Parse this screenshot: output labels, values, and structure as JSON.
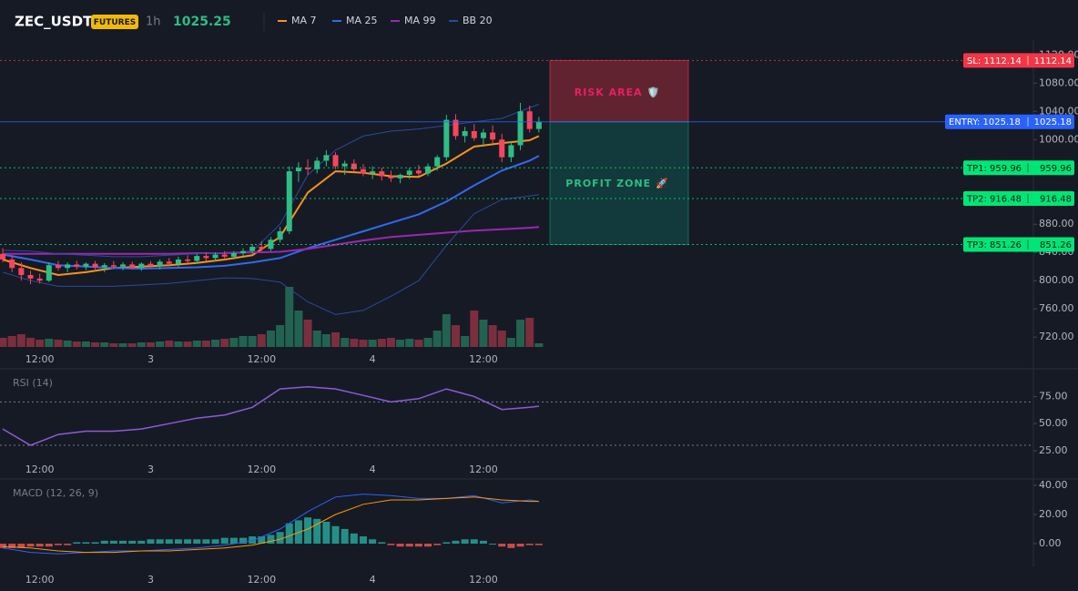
{
  "header": {
    "symbol": "ZEC_USDT",
    "badge": "FUTURES",
    "interval": "1h",
    "price": 1025.25
  },
  "chart_data": [
    {
      "type": "candlestick",
      "categories": [
        null,
        null,
        null,
        null,
        "12:00",
        null,
        null,
        null,
        null,
        null,
        null,
        null,
        null,
        null,
        null,
        null,
        "3",
        null,
        null,
        null,
        null,
        null,
        null,
        null,
        null,
        null,
        null,
        null,
        "12:00",
        null,
        null,
        null,
        null,
        null,
        null,
        null,
        null,
        null,
        null,
        null,
        "4",
        null,
        null,
        null,
        null,
        null,
        null,
        null,
        null,
        null,
        null,
        null,
        "12:00",
        null,
        null,
        null,
        null,
        null,
        null
      ],
      "open": [
        838,
        830,
        818,
        808,
        803,
        800,
        822,
        818,
        823,
        820,
        824,
        819,
        822,
        820,
        823,
        818,
        824,
        821,
        827,
        824,
        830,
        828,
        835,
        832,
        837,
        834,
        839,
        842,
        848,
        845,
        858,
        870,
        955,
        960,
        958,
        970,
        978,
        962,
        966,
        958,
        952,
        955,
        948,
        945,
        950,
        956,
        952,
        962,
        975,
        1028,
        1005,
        1012,
        1002,
        1010,
        1000,
        975,
        992,
        1040,
        1015
      ],
      "high": [
        846,
        836,
        826,
        814,
        810,
        826,
        828,
        826,
        828,
        826,
        828,
        825,
        828,
        826,
        827,
        826,
        828,
        830,
        832,
        834,
        836,
        838,
        840,
        840,
        842,
        842,
        846,
        852,
        856,
        862,
        876,
        962,
        968,
        972,
        975,
        985,
        982,
        970,
        972,
        965,
        962,
        960,
        956,
        952,
        960,
        964,
        966,
        978,
        1035,
        1036,
        1018,
        1022,
        1015,
        1020,
        1008,
        998,
        1052,
        1048,
        1032
      ],
      "low": [
        826,
        812,
        800,
        795,
        796,
        798,
        814,
        812,
        816,
        815,
        816,
        812,
        817,
        815,
        816,
        814,
        818,
        816,
        820,
        820,
        824,
        824,
        828,
        828,
        830,
        830,
        834,
        838,
        842,
        842,
        854,
        866,
        940,
        950,
        952,
        962,
        958,
        950,
        955,
        948,
        944,
        942,
        940,
        938,
        944,
        948,
        948,
        956,
        970,
        1000,
        996,
        998,
        990,
        995,
        968,
        968,
        985,
        1010,
        1010
      ],
      "close": [
        830,
        818,
        808,
        803,
        800,
        822,
        818,
        823,
        820,
        824,
        819,
        822,
        820,
        823,
        818,
        824,
        821,
        827,
        824,
        830,
        828,
        835,
        832,
        837,
        834,
        839,
        842,
        848,
        845,
        858,
        870,
        955,
        960,
        958,
        970,
        978,
        962,
        966,
        958,
        952,
        955,
        948,
        945,
        950,
        956,
        952,
        962,
        975,
        1028,
        1005,
        1012,
        1002,
        1010,
        1000,
        975,
        992,
        1040,
        1015,
        1025.25
      ],
      "volume": [
        10,
        12,
        14,
        10,
        8,
        9,
        8,
        7,
        6,
        6,
        5,
        5,
        4,
        4,
        4,
        5,
        5,
        6,
        7,
        6,
        6,
        7,
        7,
        8,
        9,
        10,
        12,
        12,
        14,
        18,
        24,
        66,
        40,
        30,
        18,
        14,
        16,
        10,
        9,
        8,
        8,
        9,
        10,
        8,
        9,
        8,
        10,
        18,
        36,
        24,
        12,
        40,
        30,
        24,
        18,
        10,
        30,
        32,
        4
      ],
      "up_color": "#2ebd85",
      "down_color": "#f6465d",
      "series": [
        {
          "name": "MA 7",
          "color": "#f7931a",
          "x": [
            0,
            3,
            6,
            9,
            12,
            15,
            18,
            21,
            24,
            27,
            30,
            33,
            36,
            39,
            42,
            45,
            48,
            51,
            54,
            57,
            58
          ],
          "values": [
            830,
            818,
            808,
            812,
            818,
            820,
            822,
            825,
            830,
            836,
            862,
            925,
            955,
            953,
            948,
            947,
            966,
            990,
            995,
            999,
            1005
          ]
        },
        {
          "name": "MA 25",
          "color": "#2f6bf0",
          "x": [
            0,
            3,
            6,
            9,
            12,
            15,
            18,
            21,
            24,
            27,
            30,
            33,
            36,
            39,
            42,
            45,
            48,
            51,
            54,
            57,
            58
          ],
          "values": [
            837,
            830,
            822,
            820,
            818,
            817,
            818,
            819,
            821,
            826,
            832,
            846,
            858,
            870,
            882,
            894,
            912,
            935,
            956,
            970,
            977
          ]
        },
        {
          "name": "MA 99",
          "color": "#9c27b0",
          "x": [
            0,
            3,
            6,
            9,
            12,
            15,
            18,
            21,
            24,
            27,
            30,
            33,
            36,
            39,
            42,
            45,
            48,
            51,
            54,
            57,
            58
          ],
          "values": [
            838,
            838,
            838,
            838,
            838,
            838,
            838,
            839,
            839,
            840,
            841,
            845,
            851,
            857,
            862,
            865,
            868,
            871,
            873,
            875,
            876
          ]
        },
        {
          "name": "BB 20",
          "color": "#2a4a9c",
          "x": [
            0,
            3,
            6,
            9,
            12,
            15,
            18,
            21,
            24,
            27,
            30,
            33,
            36,
            39,
            42,
            45,
            48,
            51,
            54,
            57,
            58
          ],
          "upper": [
            843,
            842,
            838,
            836,
            834,
            834,
            836,
            838,
            840,
            842,
            880,
            950,
            985,
            1005,
            1012,
            1015,
            1020,
            1025,
            1030,
            1045,
            1050
          ],
          "lower": [
            812,
            800,
            792,
            792,
            792,
            794,
            796,
            800,
            804,
            803,
            798,
            770,
            752,
            758,
            778,
            800,
            850,
            895,
            915,
            920,
            922
          ]
        }
      ],
      "xlim": [
        -0.3,
        111.5
      ],
      "ylim": [
        688,
        1141
      ],
      "yticks": [
        {
          "value": 720,
          "label": "720.00"
        },
        {
          "value": 760,
          "label": "760.00"
        },
        {
          "value": 800,
          "label": "800.00"
        },
        {
          "value": 840,
          "label": "840.00"
        },
        {
          "value": 880,
          "label": "880.00"
        },
        {
          "value": 920,
          "label": "920.00"
        },
        {
          "value": 960,
          "label": "960.00"
        },
        {
          "value": 1000,
          "label": "1000.00"
        },
        {
          "value": 1040,
          "label": "1040.00"
        },
        {
          "value": 1080,
          "label": "1080.00"
        },
        {
          "value": 1120,
          "label": "1120.00"
        }
      ],
      "levels": [
        {
          "label": "SL: 1112.14",
          "value": 1112.14,
          "color": "#f23645",
          "text_color": "#ffffff"
        },
        {
          "label": "ENTRY: 1025.18",
          "value": 1025.18,
          "color": "#2962ff",
          "text_color": "#ffffff"
        },
        {
          "label": "TP1: 959.96",
          "value": 959.96,
          "color": "#00e676",
          "text_color": "#0b1a10"
        },
        {
          "label": "TP2: 916.48",
          "value": 916.48,
          "color": "#00e676",
          "text_color": "#0b1a10"
        },
        {
          "label": "TP3: 851.26",
          "value": 851.26,
          "color": "#00e676",
          "text_color": "#0b1a10"
        }
      ],
      "zones": [
        {
          "label": "RISK AREA 🛡️",
          "color": "#f23645"
        },
        {
          "label": "PROFIT ZONE 🚀",
          "color": "#089981"
        }
      ]
    },
    {
      "type": "line",
      "title": "RSI (14)",
      "xlim": [
        -0.3,
        111.5
      ],
      "ylim": [
        4,
        98
      ],
      "yticks": [
        {
          "value": 25,
          "label": "25.00"
        },
        {
          "value": 50,
          "label": "50.00"
        },
        {
          "value": 75,
          "label": "75.00"
        }
      ],
      "levels": [
        70,
        30
      ],
      "series": [
        {
          "name": "RSI",
          "color": "#8c5bd6",
          "x": [
            0,
            3,
            6,
            9,
            12,
            15,
            18,
            21,
            24,
            27,
            30,
            33,
            36,
            39,
            42,
            45,
            48,
            51,
            54,
            57,
            58
          ],
          "values": [
            45,
            30,
            40,
            43,
            43,
            45,
            50,
            55,
            58,
            65,
            82,
            84,
            82,
            76,
            70,
            73,
            82,
            75,
            63,
            65,
            66
          ]
        }
      ]
    },
    {
      "type": "macd",
      "title": "MACD (12, 26, 9)",
      "xlim": [
        -0.3,
        111.5
      ],
      "ylim": [
        -15.6,
        43.1
      ],
      "yticks": [
        {
          "value": 0,
          "label": "0.00"
        },
        {
          "value": 20,
          "label": "20.00"
        },
        {
          "value": 40,
          "label": "40.00"
        }
      ],
      "histogram": {
        "values": [
          -3,
          -3,
          -3,
          -2,
          -2,
          -2,
          -1,
          -1,
          1,
          1,
          1,
          2,
          2,
          2,
          2,
          2,
          3,
          3,
          3,
          3,
          3,
          3,
          3,
          3,
          4,
          4,
          4,
          5,
          5,
          6,
          8,
          14,
          16,
          18,
          17,
          15,
          12,
          10,
          7,
          5,
          3,
          1,
          -1,
          -2,
          -2,
          -2,
          -2,
          -1,
          1,
          2,
          3,
          3,
          2,
          0,
          -2,
          -3,
          -2,
          -1,
          -1
        ],
        "up_color": "#26a69a",
        "down_color": "#ef5350"
      },
      "series": [
        {
          "name": "MACD",
          "color": "#2962ff",
          "x": [
            0,
            3,
            6,
            9,
            12,
            15,
            18,
            21,
            24,
            27,
            30,
            33,
            36,
            39,
            42,
            45,
            48,
            51,
            54,
            57,
            58
          ],
          "values": [
            -3,
            -6,
            -7,
            -6,
            -5,
            -5,
            -4,
            -3,
            -1,
            2,
            10,
            22,
            32,
            34,
            33,
            31,
            31,
            33,
            28,
            30,
            29
          ]
        },
        {
          "name": "Signal",
          "color": "#ff9800",
          "x": [
            0,
            3,
            6,
            9,
            12,
            15,
            18,
            21,
            24,
            27,
            30,
            33,
            36,
            39,
            42,
            45,
            48,
            51,
            54,
            57,
            58
          ],
          "values": [
            -2,
            -3,
            -5,
            -6,
            -6,
            -5,
            -5,
            -4,
            -3,
            -1,
            3,
            10,
            20,
            27,
            30,
            30,
            31,
            32,
            30,
            29,
            29
          ]
        }
      ]
    }
  ]
}
